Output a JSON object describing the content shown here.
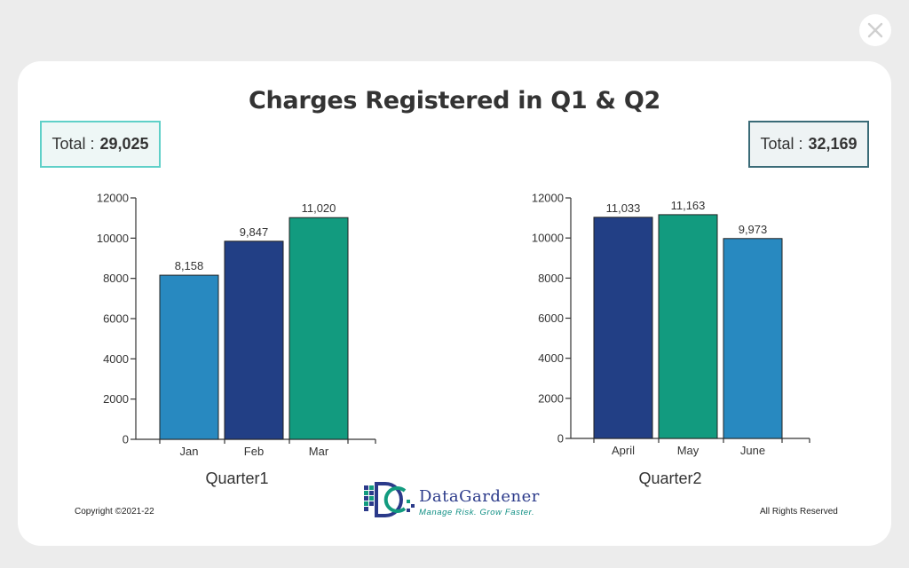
{
  "title": "Charges Registered in Q1 & Q2",
  "totals": {
    "q1_label": "Total :",
    "q1_value": "29,025",
    "q2_label": "Total :",
    "q2_value": "32,169"
  },
  "footer": {
    "copyright": "Copyright ©2021-22",
    "rights": "All Rights Reserved"
  },
  "logo": {
    "name": "DataGardener",
    "tagline": "Manage Risk. Grow Faster."
  },
  "icons": {
    "close": "close-icon"
  },
  "colors": {
    "light_blue": "#2889c0",
    "dark_blue": "#223f85",
    "teal": "#129b7f",
    "q1_border": "#5fd0c8",
    "q2_border": "#3a6b77"
  },
  "chart_data": [
    {
      "type": "bar",
      "xlabel": "Quarter1",
      "categories": [
        "Jan",
        "Feb",
        "Mar"
      ],
      "values": [
        8158,
        9847,
        11020
      ],
      "value_labels": [
        "8,158",
        "9,847",
        "11,020"
      ],
      "bar_colors": [
        "#2889c0",
        "#223f85",
        "#129b7f"
      ],
      "ylim": [
        0,
        12000
      ],
      "yticks": [
        0,
        2000,
        4000,
        6000,
        8000,
        10000,
        12000
      ],
      "grid": false
    },
    {
      "type": "bar",
      "xlabel": "Quarter2",
      "categories": [
        "April",
        "May",
        "June"
      ],
      "values": [
        11033,
        11163,
        9973
      ],
      "value_labels": [
        "11,033",
        "11,163",
        "9,973"
      ],
      "bar_colors": [
        "#223f85",
        "#129b7f",
        "#2889c0"
      ],
      "ylim": [
        0,
        12000
      ],
      "yticks": [
        0,
        2000,
        4000,
        6000,
        8000,
        10000,
        12000
      ],
      "grid": false
    }
  ]
}
